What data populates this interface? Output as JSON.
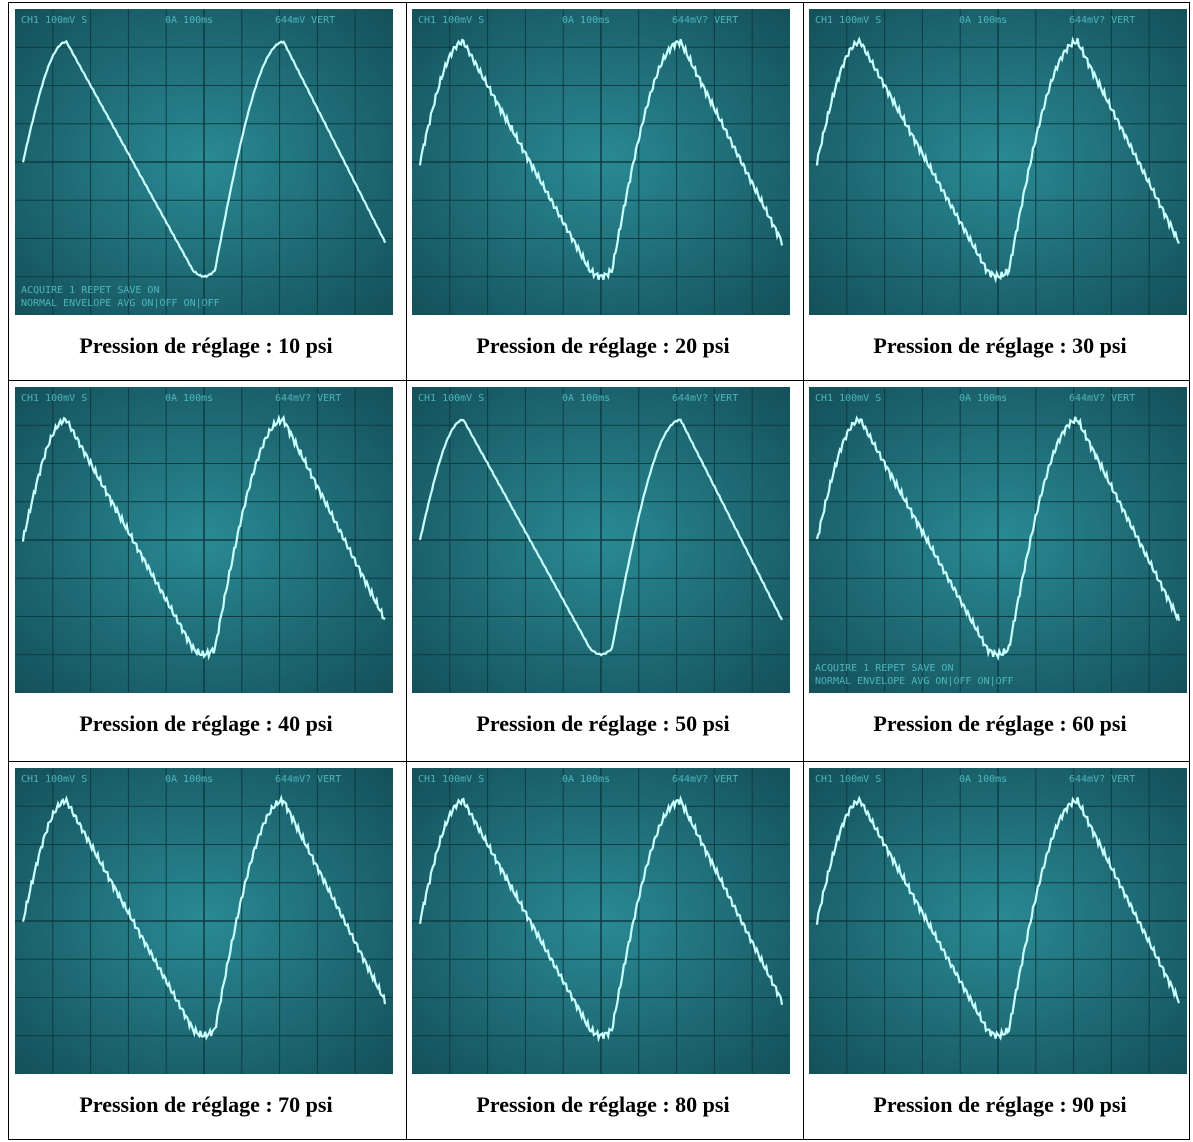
{
  "panels": [
    {
      "caption": "Pression de réglage : 10 psi",
      "screen": {
        "header": [
          "CH1 100mV S",
          "0A 100ms",
          "644mV VERT"
        ],
        "footer": [
          "ACQUIRE 1 REPET SAVE ON",
          "NORMAL ENVELOPE AVG ON|OFF ON|OFF"
        ]
      }
    },
    {
      "caption": "Pression de réglage : 20 psi",
      "screen": {
        "header": [
          "CH1 100mV S",
          "0A 100ms",
          "644mV? VERT"
        ]
      }
    },
    {
      "caption": "Pression de réglage : 30 psi",
      "screen": {
        "header": [
          "CH1 100mV S",
          "0A 100ms",
          "644mV? VERT"
        ]
      }
    },
    {
      "caption": "Pression de réglage : 40 psi",
      "screen": {
        "header": [
          "CH1 100mV S",
          "0A 100ms",
          "644mV? VERT"
        ]
      }
    },
    {
      "caption": "Pression de réglage : 50 psi",
      "screen": {
        "header": [
          "CH1 100mV S",
          "0A 100ms",
          "644mV? VERT"
        ]
      }
    },
    {
      "caption": "Pression de réglage : 60 psi",
      "screen": {
        "header": [
          "CH1 100mV S",
          "0A 100ms",
          "644mV? VERT"
        ],
        "footer": [
          "ACQUIRE 1 REPET SAVE ON",
          "NORMAL ENVELOPE AVG ON|OFF ON|OFF"
        ]
      }
    },
    {
      "caption": "Pression de réglage : 70 psi",
      "screen": {
        "header": [
          "CH1 100mV S",
          "0A 100ms",
          "644mV? VERT"
        ]
      }
    },
    {
      "caption": "Pression de réglage : 80 psi",
      "screen": {
        "header": [
          "CH1 100mV S",
          "0A 100ms",
          "644mV? VERT"
        ]
      }
    },
    {
      "caption": "Pression de réglage : 90 psi",
      "screen": {
        "header": [
          "CH1 100mV S",
          "0A 100ms",
          "644mV? VERT"
        ]
      }
    }
  ]
}
